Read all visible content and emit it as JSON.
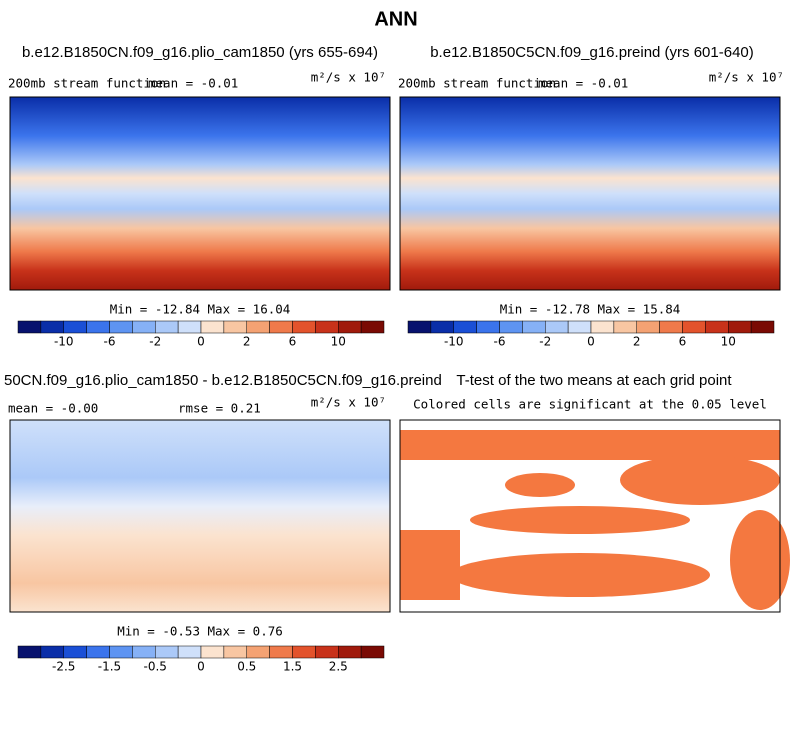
{
  "title": "ANN",
  "panels": [
    {
      "title": "b.e12.B1850CN.f09_g16.plio_cam1850 (yrs 655-694)",
      "variable": "200mb stream function",
      "mean": "mean =  -0.01",
      "units": "m²/s x 10⁷",
      "min_max": "Min = -12.84 Max =  16.04",
      "colorbar_labels": [
        "-10",
        "-6",
        "-2",
        "0",
        "2",
        "6",
        "10"
      ]
    },
    {
      "title": "b.e12.B1850C5CN.f09_g16.preind (yrs 601-640)",
      "variable": "200mb stream function",
      "mean": "mean =  -0.01",
      "units": "m²/s x 10⁷",
      "min_max": "Min = -12.78 Max =  15.84",
      "colorbar_labels": [
        "-10",
        "-6",
        "-2",
        "0",
        "2",
        "6",
        "10"
      ]
    },
    {
      "title": "50CN.f09_g16.plio_cam1850 - b.e12.B1850C5CN.f09_g16.preind",
      "mean": "mean =  -0.00",
      "rmse": "rmse =   0.21",
      "units": "m²/s x 10⁷",
      "min_max": "Min =  -0.53 Max =   0.76",
      "colorbar_labels": [
        "-2.5",
        "-1.5",
        "-0.5",
        "0",
        "0.5",
        "1.5",
        "2.5"
      ]
    },
    {
      "title": "T-test of the two means at each grid point",
      "subtitle": "Colored cells are significant at the 0.05 level"
    }
  ]
}
